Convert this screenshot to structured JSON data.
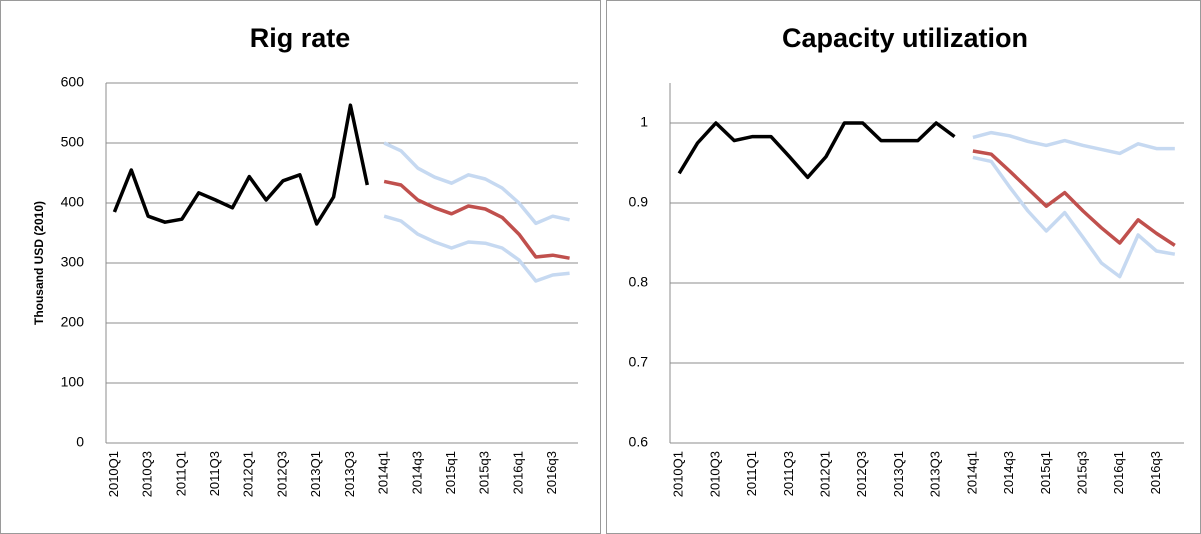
{
  "chart_data": [
    {
      "type": "line",
      "title": "Rig rate",
      "y_label": "Thousand  USD (2010)",
      "categories": [
        "2010Q1",
        null,
        "2010Q3",
        null,
        "2011Q1",
        null,
        "2011Q3",
        null,
        "2012Q1",
        null,
        "2012Q3",
        null,
        "2013Q1",
        null,
        "2013Q3",
        null,
        "2014q1",
        null,
        "2014q3",
        null,
        "2015q1",
        null,
        "2015q3",
        null,
        "2016q1",
        null,
        "2016q3",
        null
      ],
      "ylim": [
        0,
        600
      ],
      "yticks": [
        0,
        100,
        200,
        300,
        400,
        500,
        600
      ],
      "grid": true,
      "series": [
        {
          "color": "#000000",
          "values": [
            385,
            455,
            378,
            368,
            373,
            417,
            405,
            392,
            444,
            405,
            437,
            447,
            365,
            410,
            563,
            430,
            null,
            null,
            null,
            null,
            null,
            null,
            null,
            null,
            null,
            null,
            null,
            null
          ]
        },
        {
          "color": "#c6d9f1",
          "values": [
            null,
            null,
            null,
            null,
            null,
            null,
            null,
            null,
            null,
            null,
            null,
            null,
            null,
            null,
            null,
            null,
            500,
            487,
            458,
            443,
            433,
            447,
            440,
            425,
            400,
            366,
            378,
            372
          ]
        },
        {
          "color": "#c6d9f1",
          "values": [
            null,
            null,
            null,
            null,
            null,
            null,
            null,
            null,
            null,
            null,
            null,
            null,
            null,
            null,
            null,
            null,
            378,
            370,
            348,
            335,
            325,
            335,
            333,
            325,
            305,
            270,
            280,
            283
          ]
        },
        {
          "color": "#c0504d",
          "values": [
            null,
            null,
            null,
            null,
            null,
            null,
            null,
            null,
            null,
            null,
            null,
            null,
            null,
            null,
            null,
            null,
            436,
            430,
            405,
            392,
            382,
            395,
            390,
            376,
            348,
            310,
            313,
            308
          ]
        }
      ]
    },
    {
      "type": "line",
      "title": "Capacity utilization",
      "categories": [
        "2010Q1",
        null,
        "2010Q3",
        null,
        "2011Q1",
        null,
        "2011Q3",
        null,
        "2012Q1",
        null,
        "2012Q3",
        null,
        "2013Q1",
        null,
        "2013Q3",
        null,
        "2014q1",
        null,
        "2014q3",
        null,
        "2015q1",
        null,
        "2015q3",
        null,
        "2016q1",
        null,
        "2016q3",
        null
      ],
      "ylim": [
        0.6,
        1.05
      ],
      "yticks": [
        0.6,
        0.7,
        0.8,
        0.9,
        1
      ],
      "grid": true,
      "series": [
        {
          "color": "#000000",
          "values": [
            0.937,
            0.975,
            1.0,
            0.978,
            0.983,
            0.983,
            0.958,
            0.932,
            0.958,
            1.0,
            1.0,
            0.978,
            0.978,
            0.978,
            1.0,
            0.983,
            null,
            null,
            null,
            null,
            null,
            null,
            null,
            null,
            null,
            null,
            null,
            null
          ]
        },
        {
          "color": "#c6d9f1",
          "values": [
            null,
            null,
            null,
            null,
            null,
            null,
            null,
            null,
            null,
            null,
            null,
            null,
            null,
            null,
            null,
            null,
            0.982,
            0.988,
            0.984,
            0.977,
            0.972,
            0.978,
            0.972,
            0.967,
            0.962,
            0.974,
            0.968,
            0.968
          ]
        },
        {
          "color": "#c6d9f1",
          "values": [
            null,
            null,
            null,
            null,
            null,
            null,
            null,
            null,
            null,
            null,
            null,
            null,
            null,
            null,
            null,
            null,
            0.957,
            0.952,
            0.92,
            0.89,
            0.865,
            0.888,
            0.857,
            0.825,
            0.808,
            0.86,
            0.84,
            0.836
          ]
        },
        {
          "color": "#c0504d",
          "values": [
            null,
            null,
            null,
            null,
            null,
            null,
            null,
            null,
            null,
            null,
            null,
            null,
            null,
            null,
            null,
            null,
            0.965,
            0.961,
            0.94,
            0.918,
            0.896,
            0.913,
            0.89,
            0.869,
            0.85,
            0.879,
            0.862,
            0.847
          ]
        }
      ]
    }
  ]
}
